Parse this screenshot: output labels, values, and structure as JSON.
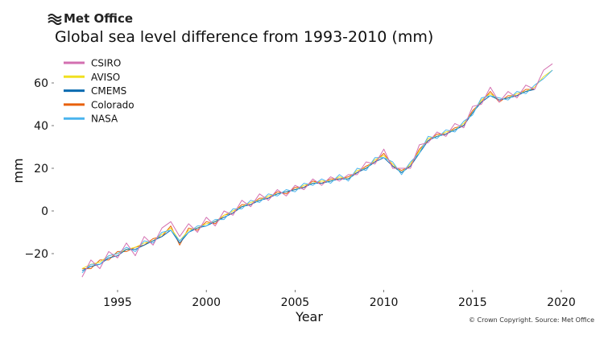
{
  "brand": "Met Office",
  "footer": "© Crown Copyright. Source: Met Office",
  "chart_data": {
    "type": "line",
    "title": "Global sea level difference from 1993-2010 (mm)",
    "xlabel": "Year",
    "ylabel": "mm",
    "xlim": [
      1992.5,
      2020.6
    ],
    "ylim": [
      -35,
      72
    ],
    "xticks": [
      1995,
      2000,
      2005,
      2010,
      2015,
      2020
    ],
    "xtick_labels": [
      "1995",
      "2000",
      "2005",
      "2010",
      "2015",
      "2020"
    ],
    "yticks": [
      -20,
      0,
      20,
      40,
      60
    ],
    "ytick_labels": [
      "−20",
      "0",
      "20",
      "40",
      "60"
    ],
    "grid": false,
    "legend_position": "top-left",
    "x": [
      1993,
      1993.5,
      1994,
      1994.5,
      1995,
      1995.5,
      1996,
      1996.5,
      1997,
      1997.5,
      1998,
      1998.5,
      1999,
      1999.5,
      2000,
      2000.5,
      2001,
      2001.5,
      2002,
      2002.5,
      2003,
      2003.5,
      2004,
      2004.5,
      2005,
      2005.5,
      2006,
      2006.5,
      2007,
      2007.5,
      2008,
      2008.5,
      2009,
      2009.5,
      2010,
      2010.5,
      2011,
      2011.5,
      2012,
      2012.5,
      2013,
      2013.5,
      2014,
      2014.5,
      2015,
      2015.5,
      2016,
      2016.5,
      2017,
      2017.5,
      2018,
      2018.5,
      2019,
      2019.5
    ],
    "series": [
      {
        "name": "CSIRO",
        "color": "#d36fb0",
        "values": [
          -31,
          -23,
          -27,
          -19,
          -22,
          -15,
          -21,
          -12,
          -16,
          -8,
          -5,
          -12,
          -6,
          -10,
          -3,
          -7,
          0,
          -2,
          5,
          2,
          8,
          5,
          10,
          7,
          12,
          10,
          15,
          12,
          16,
          14,
          17,
          17,
          23,
          22,
          29,
          20,
          20,
          20,
          31,
          32,
          37,
          35,
          41,
          39,
          49,
          50,
          58,
          51,
          56,
          53,
          59,
          57,
          66,
          69
        ]
      },
      {
        "name": "AVISO",
        "color": "#f0e020",
        "values": [
          -27,
          -25,
          -24,
          -21,
          -20,
          -18,
          -17,
          -15,
          -14,
          -11,
          -8,
          -14,
          -9,
          -8,
          -6,
          -5,
          -2,
          0,
          2,
          4,
          5,
          7,
          8,
          9,
          10,
          12,
          13,
          14,
          14,
          16,
          15,
          19,
          20,
          24,
          26,
          22,
          18,
          22,
          28,
          34,
          35,
          37,
          38,
          41,
          46,
          52,
          55,
          52,
          53,
          55,
          56,
          58,
          63,
          66
        ]
      },
      {
        "name": "CMEMS",
        "color": "#0a6bb0",
        "values": [
          -28,
          -26,
          -25,
          -22,
          -21,
          -18,
          -18,
          -16,
          -14,
          -12,
          -9,
          -15,
          -10,
          -8,
          -7,
          -5,
          -3,
          -1,
          2,
          3,
          5,
          6,
          8,
          9,
          10,
          11,
          13,
          13,
          14,
          15,
          15,
          18,
          20,
          23,
          25,
          21,
          18,
          21,
          27,
          33,
          35,
          36,
          38,
          40,
          46,
          51,
          54,
          52,
          53,
          54,
          56,
          57,
          null,
          null
        ]
      },
      {
        "name": "Colorado",
        "color": "#e8600a",
        "values": [
          -27,
          -27,
          -23,
          -23,
          -19,
          -19,
          -17,
          -16,
          -13,
          -12,
          -7,
          -16,
          -8,
          -9,
          -5,
          -6,
          -2,
          -1,
          3,
          3,
          6,
          6,
          9,
          8,
          11,
          11,
          14,
          13,
          15,
          15,
          16,
          18,
          21,
          23,
          27,
          21,
          19,
          21,
          29,
          33,
          36,
          36,
          39,
          40,
          47,
          51,
          56,
          51,
          54,
          54,
          57,
          57,
          null,
          null
        ]
      },
      {
        "name": "NASA",
        "color": "#4ab4ee",
        "values": [
          -29,
          -25,
          -25,
          -21,
          -20,
          -17,
          -19,
          -14,
          -15,
          -10,
          -9,
          -14,
          -10,
          -7,
          -7,
          -4,
          -4,
          1,
          1,
          5,
          4,
          8,
          7,
          10,
          9,
          13,
          12,
          15,
          13,
          17,
          14,
          20,
          19,
          25,
          25,
          23,
          17,
          23,
          27,
          35,
          34,
          38,
          37,
          42,
          45,
          53,
          54,
          53,
          52,
          56,
          55,
          59,
          62,
          66
        ]
      }
    ]
  }
}
